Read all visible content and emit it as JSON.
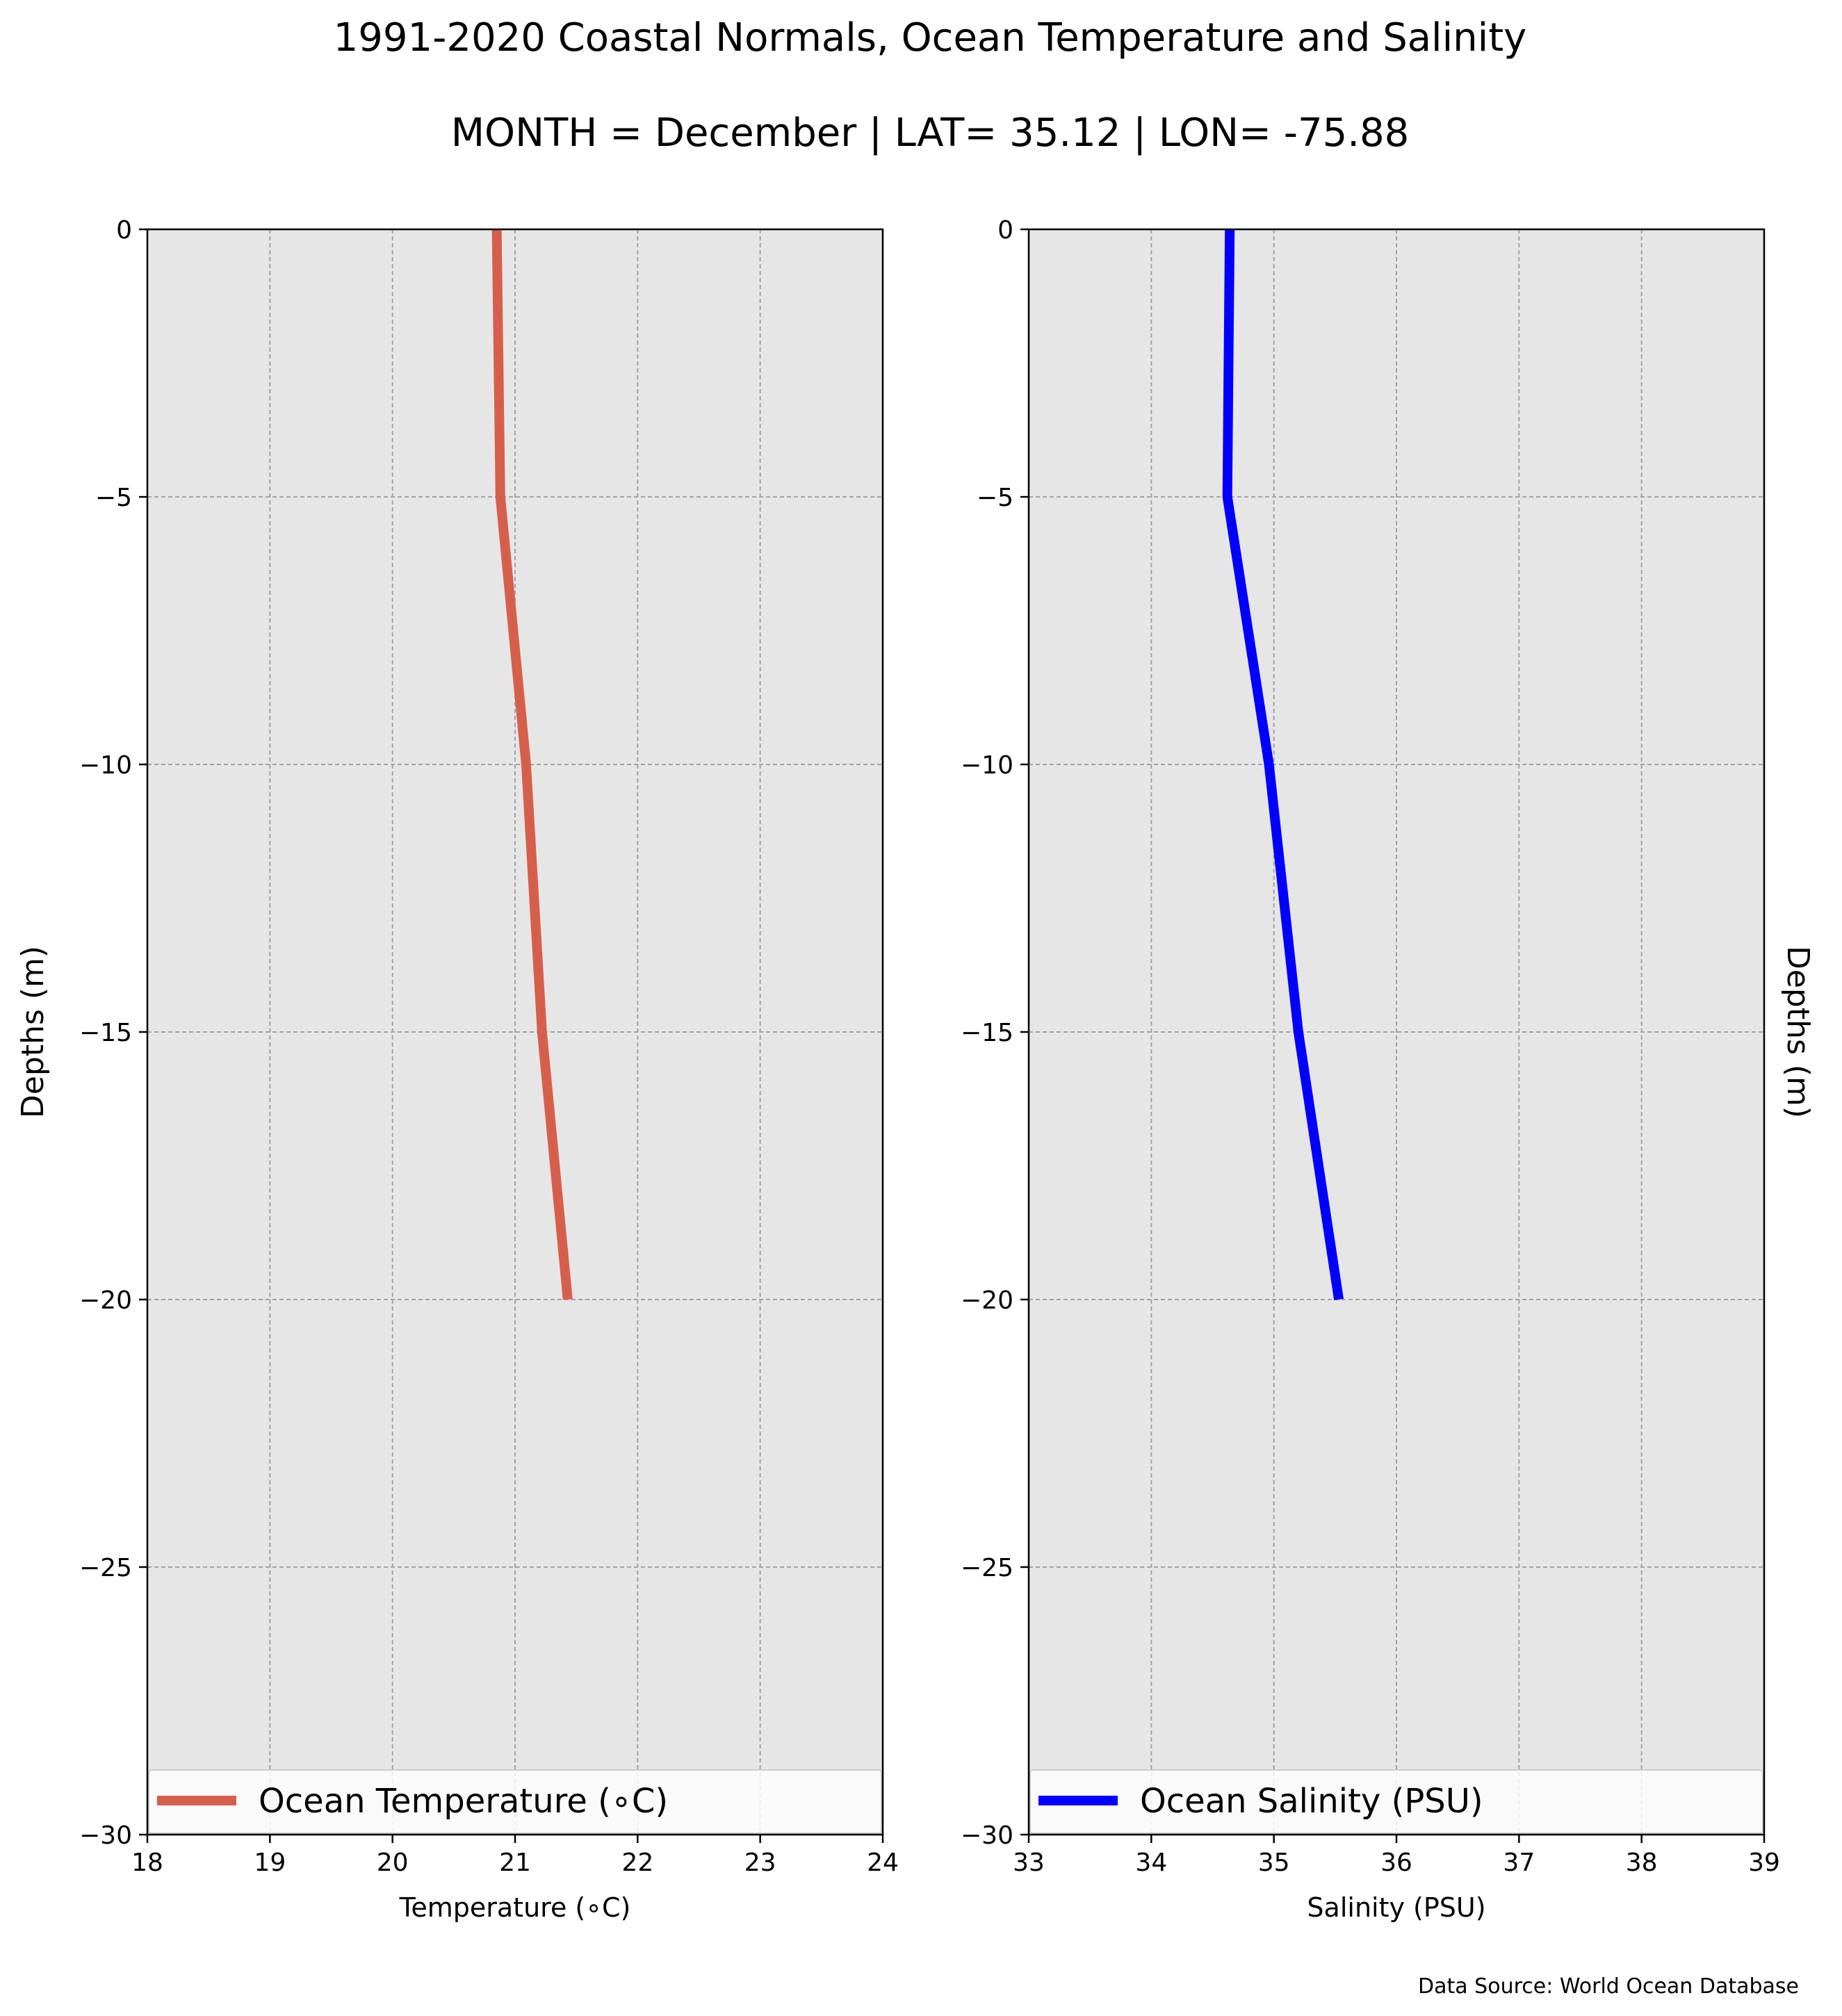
{
  "figure": {
    "title_line1": "1991-2020 Coastal Normals, Ocean Temperature and Salinity",
    "title_line2": "MONTH = December | LAT= 35.12 | LON= -75.88",
    "source": "Data Source: World Ocean Database",
    "background_color": "#e6e6e6",
    "grid": true
  },
  "chart_data": [
    {
      "type": "line",
      "xlabel": "Temperature (∘C)",
      "ylabel": "Depths (m)",
      "ylabel_side": "left",
      "xlim": [
        18,
        24
      ],
      "ylim": [
        -30,
        0
      ],
      "xticks": [
        18,
        19,
        20,
        21,
        22,
        23,
        24
      ],
      "yticks": [
        0,
        -5,
        -10,
        -15,
        -20,
        -25,
        -30
      ],
      "xtick_labels": [
        "18",
        "19",
        "20",
        "21",
        "22",
        "23",
        "24"
      ],
      "ytick_labels": [
        "0",
        "−5",
        "−10",
        "−15",
        "−20",
        "−25",
        "−30"
      ],
      "legend_position": "bottom",
      "series": [
        {
          "name": "Ocean Temperature (∘C)",
          "color": "#d65f4c",
          "x": [
            20.85,
            20.88,
            21.09,
            21.22,
            21.43
          ],
          "y": [
            0,
            -5,
            -10,
            -15,
            -20
          ]
        }
      ]
    },
    {
      "type": "line",
      "xlabel": "Salinity (PSU)",
      "ylabel": "Depths (m)",
      "ylabel_side": "right",
      "xlim": [
        33,
        39
      ],
      "ylim": [
        -30,
        0
      ],
      "xticks": [
        33,
        34,
        35,
        36,
        37,
        38,
        39
      ],
      "yticks": [
        0,
        -5,
        -10,
        -15,
        -20,
        -25,
        -30
      ],
      "xtick_labels": [
        "33",
        "34",
        "35",
        "36",
        "37",
        "38",
        "39"
      ],
      "ytick_labels": [
        "0",
        "−5",
        "−10",
        "−15",
        "−20",
        "−25",
        "−30"
      ],
      "legend_position": "bottom",
      "series": [
        {
          "name": "Ocean Salinity (PSU)",
          "color": "#0000ff",
          "x": [
            34.64,
            34.62,
            34.96,
            35.2,
            35.53
          ],
          "y": [
            0,
            -5,
            -10,
            -15,
            -20
          ]
        }
      ]
    }
  ]
}
